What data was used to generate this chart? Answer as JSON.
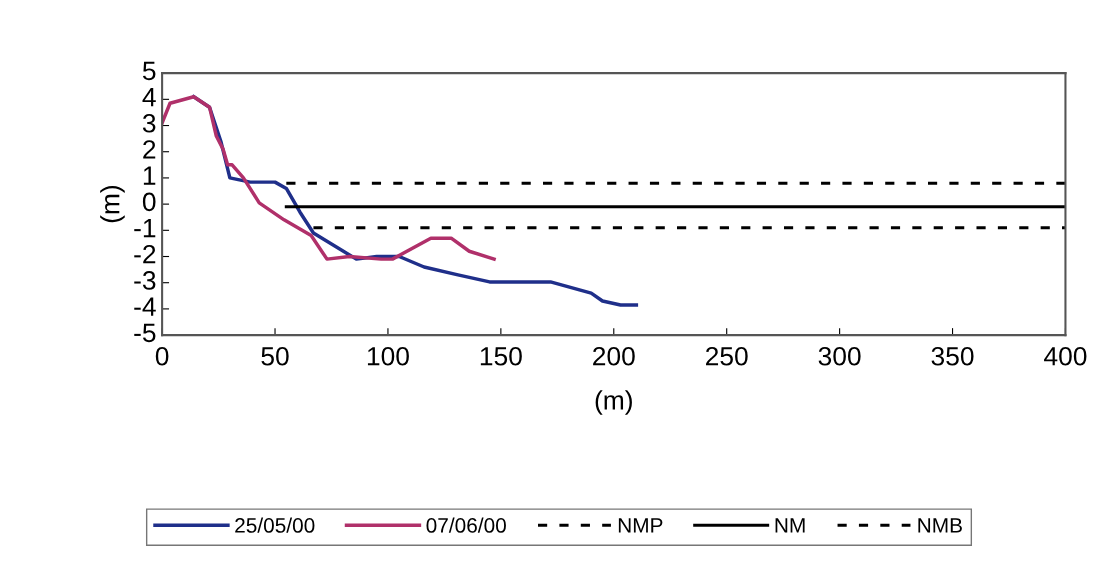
{
  "chart_data": {
    "type": "line",
    "xlabel": "(m)",
    "ylabel": "(m)",
    "xlim": [
      0,
      400
    ],
    "xticks": [
      0,
      50,
      100,
      150,
      200,
      250,
      300,
      350,
      400
    ],
    "ylim": [
      -5,
      5
    ],
    "yticks": [
      -5,
      -4,
      -3,
      -2,
      -1,
      0,
      1,
      2,
      3,
      4,
      5
    ],
    "grid": false,
    "legend": "bottom",
    "series": [
      {
        "name": "25/05/00",
        "color": "#1f2f8a",
        "line_style": "solid",
        "x": [
          14,
          21,
          26,
          30,
          39,
          50,
          55,
          61,
          67,
          86,
          95,
          105,
          116,
          131,
          145,
          172,
          190,
          195,
          203,
          210
        ],
        "values": [
          4.1,
          3.7,
          2.4,
          1.0,
          0.84,
          0.84,
          0.6,
          -0.3,
          -1.1,
          -2.1,
          -2.0,
          -2.0,
          -2.4,
          -2.7,
          -2.97,
          -2.97,
          -3.4,
          -3.7,
          -3.85,
          -3.85
        ]
      },
      {
        "name": "07/06/00",
        "color": "#b0306a",
        "line_style": "solid",
        "x": [
          0,
          3.5,
          14,
          21,
          24,
          27,
          29,
          31,
          36,
          43,
          54,
          66,
          73,
          83,
          97,
          102,
          119,
          128,
          136,
          147
        ],
        "values": [
          3.1,
          3.85,
          4.1,
          3.7,
          2.6,
          2.1,
          1.5,
          1.5,
          1.0,
          0.05,
          -0.6,
          -1.2,
          -2.1,
          -2.0,
          -2.1,
          -2.1,
          -1.3,
          -1.3,
          -1.8,
          -2.1
        ]
      },
      {
        "name": "NMP",
        "color": "#000000",
        "line_style": "dashed",
        "x": [
          55,
          400
        ],
        "values": [
          0.8,
          0.8
        ]
      },
      {
        "name": "NM",
        "color": "#000000",
        "line_style": "solid",
        "x": [
          55,
          400
        ],
        "values": [
          -0.1,
          -0.1
        ]
      },
      {
        "name": "NMB",
        "color": "#000000",
        "line_style": "dashed",
        "x": [
          67,
          400
        ],
        "values": [
          -0.9,
          -0.9
        ]
      }
    ]
  }
}
